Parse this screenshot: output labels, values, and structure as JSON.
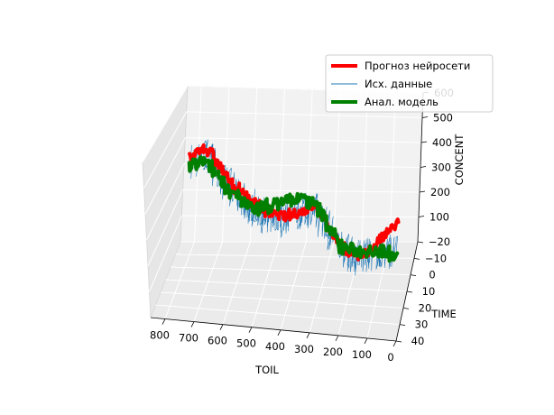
{
  "chart_data": {
    "type": "line",
    "projection": "3d",
    "xlabel": "TOIL",
    "ylabel": "TIME",
    "zlabel": "CONCENT",
    "xlim": [
      850,
      0
    ],
    "ylim": [
      -20,
      40
    ],
    "zlim": [
      0,
      600
    ],
    "xticks": [
      "800",
      "700",
      "600",
      "500",
      "400",
      "300",
      "200",
      "100",
      "0"
    ],
    "yticks": [
      "−20",
      "−10",
      "0",
      "10",
      "20",
      "30",
      "40"
    ],
    "zticks": [
      "100",
      "200",
      "300",
      "400",
      "500",
      "600"
    ],
    "grid": true,
    "legend_position": "top-right",
    "series": [
      {
        "name": "Прогноз нейросети",
        "color": "#ff0000",
        "points": [
          [
            800,
            0,
            420
          ],
          [
            750,
            0,
            470
          ],
          [
            700,
            0,
            410
          ],
          [
            650,
            0,
            330
          ],
          [
            600,
            0,
            290
          ],
          [
            550,
            0,
            250
          ],
          [
            500,
            0,
            220
          ],
          [
            450,
            0,
            215
          ],
          [
            400,
            0,
            230
          ],
          [
            350,
            0,
            260
          ],
          [
            300,
            0,
            190
          ],
          [
            250,
            0,
            110
          ],
          [
            200,
            0,
            60
          ],
          [
            150,
            0,
            90
          ],
          [
            100,
            0,
            150
          ],
          [
            50,
            0,
            210
          ]
        ]
      },
      {
        "name": "Исх. данные",
        "color": "#1f77b4",
        "points": [
          [
            800,
            0,
            400
          ],
          [
            750,
            0,
            440
          ],
          [
            700,
            0,
            380
          ],
          [
            650,
            0,
            320
          ],
          [
            600,
            0,
            270
          ],
          [
            550,
            0,
            230
          ],
          [
            500,
            0,
            200
          ],
          [
            450,
            0,
            210
          ],
          [
            400,
            0,
            240
          ],
          [
            350,
            0,
            250
          ],
          [
            300,
            0,
            170
          ],
          [
            250,
            0,
            110
          ],
          [
            200,
            0,
            70
          ],
          [
            150,
            0,
            70
          ],
          [
            100,
            0,
            90
          ],
          [
            50,
            0,
            90
          ]
        ]
      },
      {
        "name": "Анал. модель",
        "color": "#008000",
        "points": [
          [
            800,
            0,
            390
          ],
          [
            750,
            0,
            410
          ],
          [
            700,
            0,
            370
          ],
          [
            650,
            0,
            300
          ],
          [
            600,
            0,
            255
          ],
          [
            550,
            0,
            240
          ],
          [
            500,
            0,
            255
          ],
          [
            450,
            0,
            275
          ],
          [
            400,
            0,
            290
          ],
          [
            350,
            0,
            270
          ],
          [
            300,
            0,
            190
          ],
          [
            250,
            0,
            100
          ],
          [
            200,
            0,
            90
          ],
          [
            150,
            0,
            95
          ],
          [
            100,
            0,
            90
          ],
          [
            50,
            0,
            85
          ]
        ]
      }
    ]
  }
}
